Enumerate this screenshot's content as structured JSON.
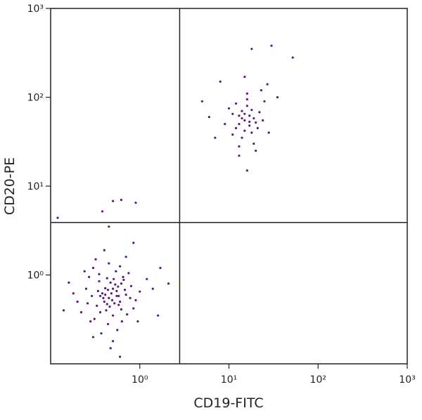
{
  "chart_data": {
    "type": "scatter",
    "xlabel": "CD19-FITC",
    "ylabel": "CD20-PE",
    "xscale": "log",
    "yscale": "log",
    "xlim": [
      0.1,
      1000
    ],
    "ylim": [
      0.1,
      1000
    ],
    "xticks": [
      {
        "value": 1,
        "label": "10⁰"
      },
      {
        "value": 10,
        "label": "10¹"
      },
      {
        "value": 100,
        "label": "10²"
      },
      {
        "value": 1000,
        "label": "10³"
      }
    ],
    "yticks": [
      {
        "value": 1,
        "label": "10⁰"
      },
      {
        "value": 10,
        "label": "10¹"
      },
      {
        "value": 100,
        "label": "10²"
      },
      {
        "value": 1000,
        "label": "10³"
      }
    ],
    "quadrant_gates": {
      "x": 2.8,
      "y": 3.9
    },
    "color": "#5b1782",
    "x": [
      0.45,
      0.38,
      0.52,
      0.41,
      0.6,
      0.33,
      0.47,
      0.55,
      0.29,
      0.7,
      0.36,
      0.5,
      0.43,
      0.62,
      0.25,
      0.8,
      0.4,
      0.58,
      0.46,
      0.35,
      0.66,
      0.31,
      0.54,
      0.9,
      0.2,
      0.44,
      0.72,
      0.27,
      0.48,
      0.39,
      0.57,
      0.63,
      0.34,
      0.51,
      0.42,
      1.0,
      0.18,
      0.75,
      0.3,
      0.56,
      0.45,
      0.22,
      0.85,
      0.6,
      0.37,
      0.49,
      0.68,
      0.26,
      0.53,
      0.41,
      1.2,
      0.16,
      0.95,
      0.5,
      0.32,
      0.78,
      0.44,
      0.58,
      0.36,
      0.65,
      1.4,
      0.24,
      0.47,
      0.7,
      0.4,
      0.55,
      0.28,
      0.62,
      0.43,
      0.5,
      0.14,
      1.7,
      2.1,
      0.85,
      0.45,
      0.5,
      0.62,
      0.38,
      0.9,
      0.12,
      1.6,
      0.3,
      0.6,
      0.35,
      15,
      13,
      17,
      14,
      19,
      12,
      16,
      18,
      11,
      20,
      14,
      16,
      13,
      22,
      10,
      17,
      15,
      24,
      12,
      19,
      14,
      16,
      21,
      9,
      18,
      13,
      25,
      15,
      11,
      17,
      23,
      8,
      27,
      30,
      18,
      52,
      5,
      7,
      13,
      16,
      35,
      6,
      20,
      15,
      28
    ],
    "values": [
      0.55,
      0.62,
      0.48,
      0.71,
      0.5,
      0.45,
      0.82,
      0.66,
      0.58,
      0.6,
      0.38,
      0.35,
      0.92,
      0.41,
      0.7,
      0.75,
      0.5,
      0.58,
      0.44,
      0.85,
      0.88,
      0.32,
      1.1,
      0.52,
      0.5,
      0.28,
      0.36,
      0.95,
      0.62,
      0.55,
      0.74,
      0.3,
      0.66,
      0.9,
      0.4,
      0.65,
      0.62,
      1.05,
      1.2,
      0.24,
      1.35,
      0.38,
      0.42,
      1.25,
      0.22,
      0.52,
      0.68,
      0.48,
      0.78,
      0.6,
      0.9,
      0.82,
      0.3,
      0.18,
      1.5,
      0.55,
      0.68,
      0.46,
      0.58,
      0.95,
      0.7,
      1.1,
      0.15,
      1.6,
      1.9,
      0.58,
      0.3,
      0.8,
      0.47,
      0.7,
      0.4,
      1.2,
      0.8,
      2.3,
      3.5,
      6.8,
      7,
      5.2,
      6.5,
      4.4,
      0.35,
      0.2,
      0.12,
      1.02,
      55,
      62,
      48,
      70,
      58,
      45,
      80,
      40,
      65,
      52,
      35,
      95,
      50,
      68,
      75,
      62,
      42,
      55,
      85,
      30,
      58,
      110,
      45,
      50,
      72,
      28,
      90,
      65,
      38,
      53,
      120,
      150,
      140,
      380,
      350,
      280,
      90,
      35,
      22,
      15,
      100,
      60,
      25,
      170,
      40
    ]
  }
}
